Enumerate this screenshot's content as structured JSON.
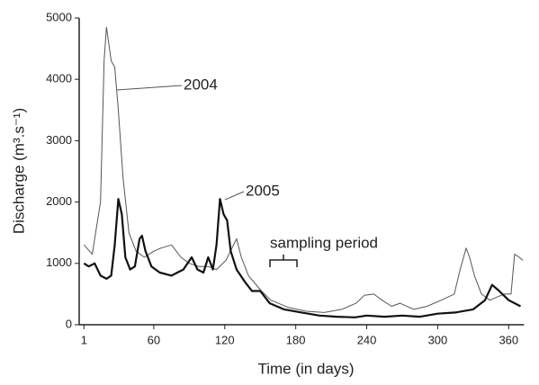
{
  "chart_data": {
    "type": "line",
    "xlabel": "Time (in days)",
    "ylabel": "Discharge (m³.s⁻¹)",
    "annotation": "sampling period",
    "xlim": [
      -1,
      373
    ],
    "xticks": [
      1,
      60,
      120,
      180,
      240,
      300,
      360
    ],
    "ylim": [
      0,
      5000
    ],
    "yticks": [
      0,
      1000,
      2000,
      3000,
      4000,
      5000
    ],
    "grid": false,
    "series": [
      {
        "name": "2004",
        "color": "#555555",
        "width": 1,
        "x": [
          1,
          8,
          15,
          18,
          20,
          24,
          27,
          30,
          34,
          39,
          45,
          52,
          60,
          66,
          75,
          83,
          90,
          98,
          106,
          113,
          121,
          130,
          134,
          140,
          151,
          159,
          174,
          189,
          204,
          219,
          231,
          238,
          246,
          253,
          261,
          268,
          280,
          291,
          303,
          314,
          319,
          324,
          327,
          331,
          337,
          344,
          350,
          356,
          362,
          365,
          369,
          372
        ],
        "values": [
          1300,
          1150,
          2000,
          4300,
          4850,
          4300,
          4200,
          3500,
          2400,
          1500,
          1200,
          1100,
          1200,
          1250,
          1300,
          1100,
          1000,
          950,
          950,
          900,
          1050,
          1400,
          1100,
          800,
          550,
          400,
          280,
          220,
          200,
          250,
          350,
          480,
          500,
          400,
          300,
          350,
          250,
          300,
          400,
          500,
          900,
          1250,
          1100,
          800,
          500,
          400,
          450,
          500,
          500,
          1150,
          1100,
          1050
        ]
      },
      {
        "name": "2005",
        "color": "#111111",
        "width": 2.2,
        "x": [
          1,
          5,
          10,
          15,
          20,
          24,
          27,
          30,
          33,
          36,
          40,
          44,
          48,
          50,
          53,
          58,
          65,
          75,
          85,
          92,
          97,
          102,
          106,
          110,
          113,
          116,
          119,
          122,
          125,
          130,
          137,
          143,
          150,
          158,
          170,
          185,
          200,
          215,
          230,
          240,
          255,
          270,
          285,
          300,
          315,
          330,
          340,
          346,
          352,
          360,
          370
        ],
        "values": [
          1000,
          950,
          1000,
          800,
          750,
          800,
          1300,
          2050,
          1800,
          1100,
          900,
          950,
          1400,
          1450,
          1200,
          950,
          850,
          800,
          900,
          1100,
          900,
          850,
          1100,
          900,
          1300,
          2050,
          1800,
          1700,
          1200,
          900,
          700,
          550,
          550,
          350,
          250,
          200,
          150,
          130,
          120,
          150,
          130,
          150,
          130,
          180,
          200,
          250,
          400,
          650,
          550,
          400,
          300
        ]
      }
    ]
  }
}
